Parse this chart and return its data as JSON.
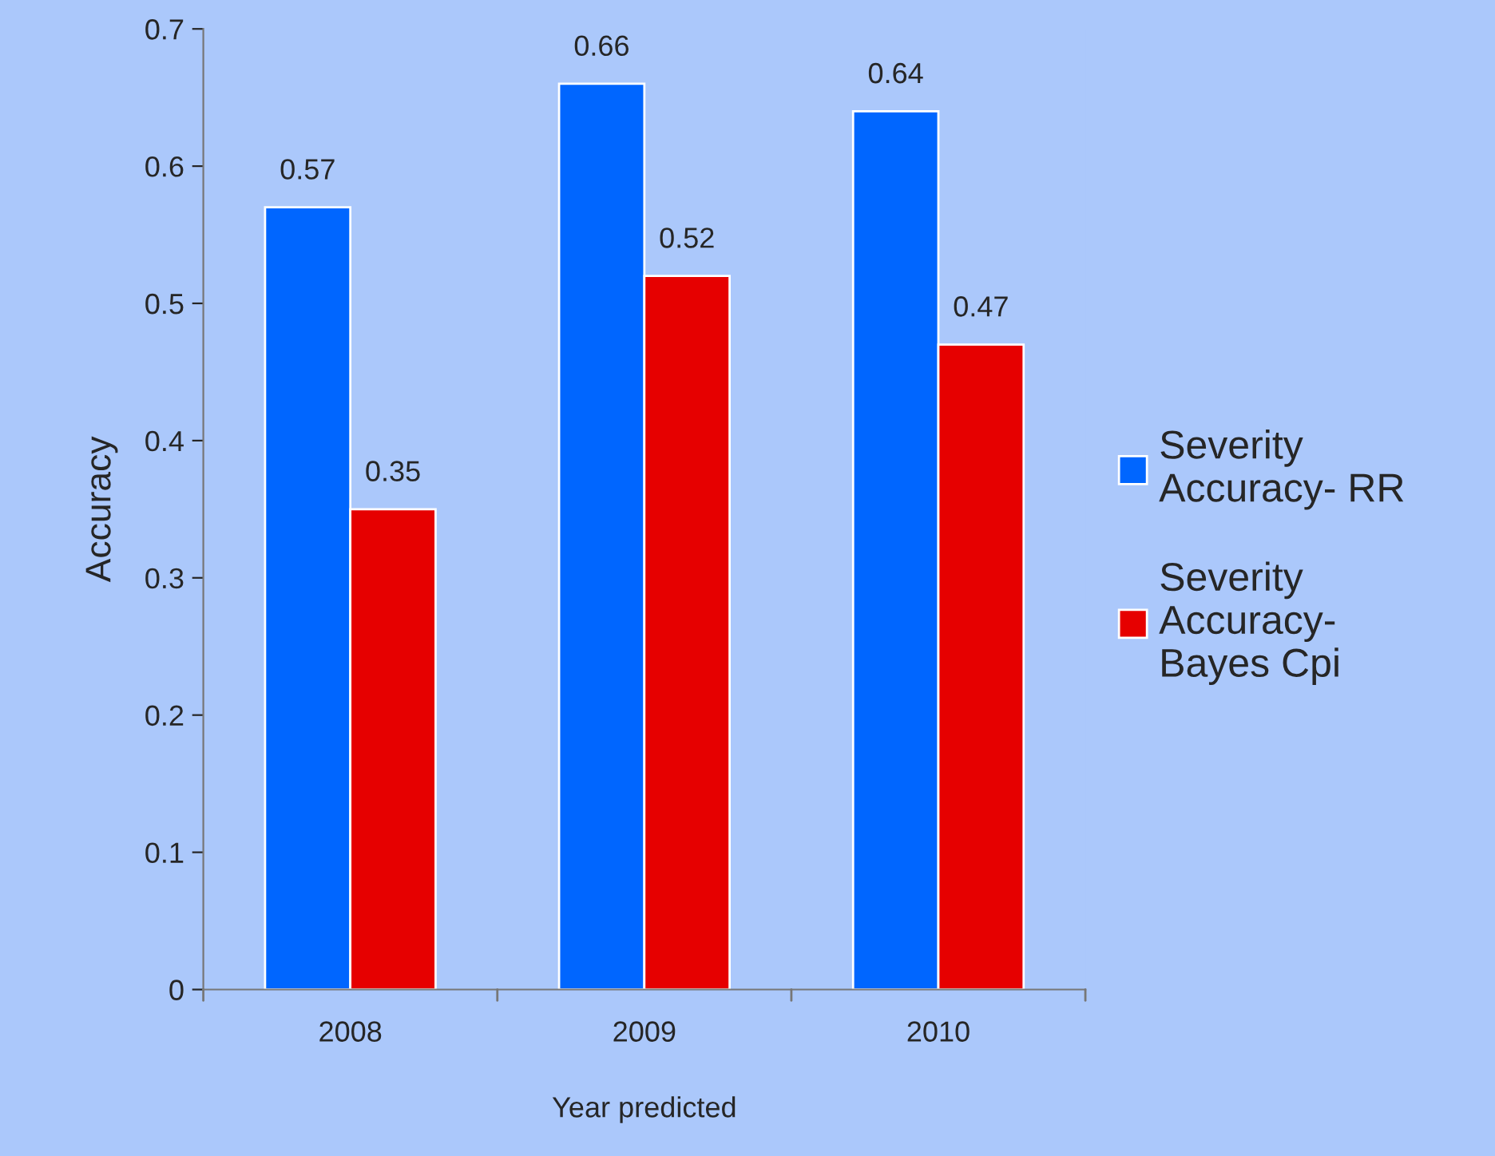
{
  "chart_data": {
    "type": "bar",
    "xlabel": "Year predicted",
    "ylabel": "Accuracy",
    "categories": [
      "2008",
      "2009",
      "2010"
    ],
    "series": [
      {
        "name": "Severity\nAccuracy- RR",
        "color": "#0066ff",
        "values": [
          0.57,
          0.66,
          0.64
        ]
      },
      {
        "name": "Severity\nAccuracy-\nBayes Cpi",
        "color": "#e60000",
        "values": [
          0.35,
          0.52,
          0.47
        ]
      }
    ],
    "ylim": [
      0,
      0.7
    ],
    "yticks": [
      0,
      0.1,
      0.2,
      0.3,
      0.4,
      0.5,
      0.6,
      0.7
    ],
    "data_labels": true,
    "grid": false,
    "legend": "right"
  }
}
